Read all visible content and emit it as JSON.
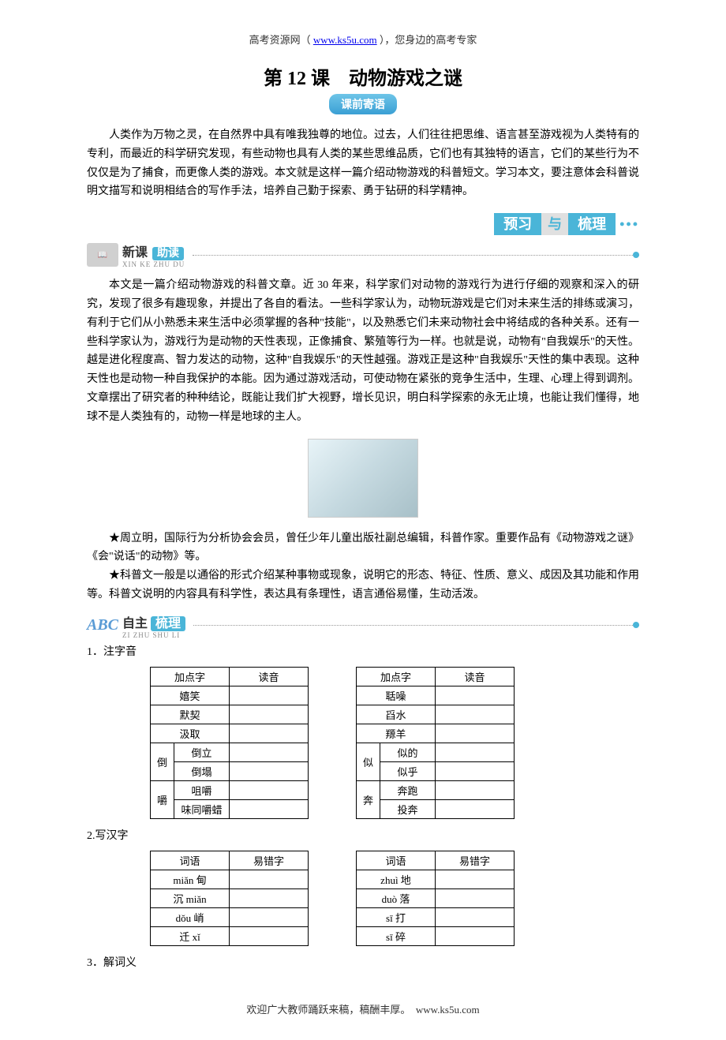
{
  "header": {
    "site_name": "高考资源网（",
    "url": "www.ks5u.com",
    "tagline": "），您身边的高考专家"
  },
  "title": "第 12 课　动物游戏之谜",
  "title_badge": "课前寄语",
  "intro": "人类作为万物之灵，在自然界中具有唯我独尊的地位。过去，人们往往把思维、语言甚至游戏视为人类特有的专利，而最近的科学研究发现，有些动物也具有人类的某些思维品质，它们也有其独特的语言，它们的某些行为不仅仅是为了捕食，而更像人类的游戏。本文就是这样一篇介绍动物游戏的科普短文。学习本文，要注意体会科普说明文描写和说明相结合的写作手法，培养自己勤于探索、勇于钻研的科学精神。",
  "preview_section": {
    "label_left": "预习",
    "label_mid": "与",
    "label_right": "梳理"
  },
  "xinke": {
    "cn": "新课",
    "badge": "助读",
    "pinyin": "XIN KE ZHU DU"
  },
  "main_para": "本文是一篇介绍动物游戏的科普文章。近 30 年来，科学家们对动物的游戏行为进行仔细的观察和深入的研究，发现了很多有趣现象，并提出了各自的看法。一些科学家认为，动物玩游戏是它们对未来生活的排练或演习，有利于它们从小熟悉未来生活中必须掌握的各种\"技能\"，以及熟悉它们未来动物社会中将结成的各种关系。还有一些科学家认为，游戏行为是动物的天性表现，正像捕食、繁殖等行为一样。也就是说，动物有\"自我娱乐\"的天性。越是进化程度高、智力发达的动物，这种\"自我娱乐\"的天性越强。游戏正是这种\"自我娱乐\"天性的集中表现。这种天性也是动物一种自我保护的本能。因为通过游戏活动，可使动物在紧张的竞争生活中，生理、心理上得到调剂。文章摆出了研究者的种种结论，既能让我们扩大视野，增长见识，明白科学探索的永无止境，也能让我们懂得，地球不是人类独有的，动物一样是地球的主人。",
  "author_para": "★周立明，国际行为分析协会会员，曾任少年儿童出版社副总编辑，科普作家。重要作品有《动物游戏之谜》《会\"说话\"的动物》等。",
  "kepu_para": "★科普文一般是以通俗的形式介绍某种事物或现象，说明它的形态、特征、性质、意义、成因及其功能和作用等。科普文说明的内容具有科学性，表达具有条理性，语言通俗易懂，生动活泼。",
  "zizhu": {
    "cn1": "自主",
    "cn2": "梳理",
    "pinyin": "ZI ZHU SHU LI"
  },
  "section1": {
    "num": "1．注字音",
    "table1": {
      "headers": [
        "加点字",
        "读音"
      ],
      "rows": [
        [
          "嬉笑",
          ""
        ],
        [
          "默契",
          ""
        ],
        [
          "汲取",
          ""
        ]
      ],
      "grouped": [
        {
          "group": "倒",
          "items": [
            [
              "倒立",
              ""
            ],
            [
              "倒塌",
              ""
            ]
          ]
        },
        {
          "group": "嚼",
          "items": [
            [
              "咀嚼",
              ""
            ],
            [
              "味同嚼蜡",
              ""
            ]
          ]
        }
      ]
    },
    "table2": {
      "headers": [
        "加点字",
        "读音"
      ],
      "rows": [
        [
          "聒噪",
          ""
        ],
        [
          "舀水",
          ""
        ],
        [
          "羱羊",
          ""
        ]
      ],
      "grouped": [
        {
          "group": "似",
          "items": [
            [
              "似的",
              ""
            ],
            [
              "似乎",
              ""
            ]
          ]
        },
        {
          "group": "奔",
          "items": [
            [
              "奔跑",
              ""
            ],
            [
              "投奔",
              ""
            ]
          ]
        }
      ]
    }
  },
  "section2": {
    "num": "2.写汉字",
    "table1": {
      "headers": [
        "词语",
        "易错字"
      ],
      "rows": [
        [
          "miǎn 甸",
          ""
        ],
        [
          "沉 miǎn",
          ""
        ],
        [
          "dǒu 峭",
          ""
        ],
        [
          "迁 xǐ",
          ""
        ]
      ]
    },
    "table2": {
      "headers": [
        "词语",
        "易错字"
      ],
      "rows": [
        [
          "zhuì 地",
          ""
        ],
        [
          "duò 落",
          ""
        ],
        [
          "sī 打",
          ""
        ],
        [
          "sī 碎",
          ""
        ]
      ]
    }
  },
  "section3": {
    "num": "3．解词义"
  },
  "footer": {
    "text": "欢迎广大教师踊跃来稿，稿酬丰厚。　www.ks5u.com"
  }
}
